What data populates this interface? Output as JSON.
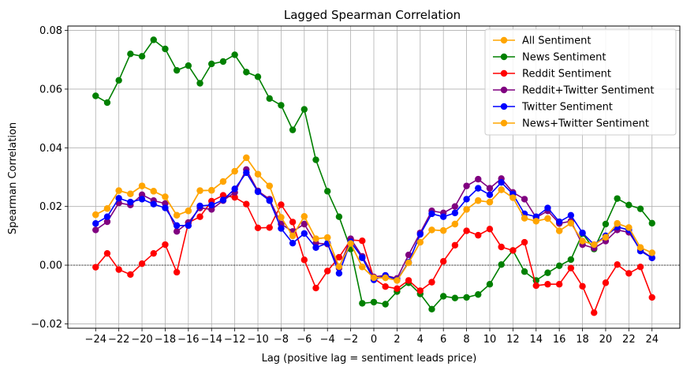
{
  "chart_data": {
    "type": "line",
    "title": "Lagged Spearman Correlation",
    "xlabel": "Lag (positive lag = sentiment leads price)",
    "ylabel": "Spearman Correlation",
    "xlim": [
      -26.4,
      26.4
    ],
    "ylim": [
      -0.0215,
      0.0815
    ],
    "xticks": [
      -24,
      -22,
      -20,
      -18,
      -16,
      -14,
      -12,
      -10,
      -8,
      -6,
      -4,
      -2,
      0,
      2,
      4,
      6,
      8,
      10,
      12,
      14,
      16,
      18,
      20,
      22,
      24
    ],
    "yticks": [
      -0.02,
      0.0,
      0.02,
      0.04,
      0.06,
      0.08
    ],
    "xtick_labels": [
      "−24",
      "−22",
      "−20",
      "−18",
      "−16",
      "−14",
      "−12",
      "−10",
      "−8",
      "−6",
      "−4",
      "−2",
      "0",
      "2",
      "4",
      "6",
      "8",
      "10",
      "12",
      "14",
      "16",
      "18",
      "20",
      "22",
      "24"
    ],
    "ytick_labels": [
      "−0.02",
      "0.00",
      "0.02",
      "0.04",
      "0.06",
      "0.08"
    ],
    "grid": true,
    "zero_line": true,
    "legend_position": "top-right",
    "x": [
      -24,
      -23,
      -22,
      -21,
      -20,
      -19,
      -18,
      -17,
      -16,
      -15,
      -14,
      -13,
      -12,
      -11,
      -10,
      -9,
      -8,
      -7,
      -6,
      -5,
      -4,
      -3,
      -2,
      -1,
      0,
      1,
      2,
      3,
      4,
      5,
      6,
      7,
      8,
      9,
      10,
      11,
      12,
      13,
      14,
      15,
      16,
      17,
      18,
      19,
      20,
      21,
      22,
      23,
      24
    ],
    "series": [
      {
        "name": "All Sentiment",
        "color": "#ffa500",
        "values": [
          0.0172,
          0.0193,
          0.0254,
          0.0243,
          0.027,
          0.0252,
          0.0233,
          0.017,
          0.0185,
          0.0254,
          0.0255,
          0.0285,
          0.032,
          0.0366,
          0.031,
          0.027,
          0.0163,
          0.01,
          0.0166,
          0.009,
          0.0094,
          -0.0005,
          0.0074,
          -0.0006,
          -0.0043,
          -0.0043,
          -0.0052,
          0.0008,
          0.0078,
          0.012,
          0.0118,
          0.014,
          0.019,
          0.022,
          0.0215,
          0.0257,
          0.023,
          0.016,
          0.015,
          0.0159,
          0.0117,
          0.0143,
          0.0082,
          0.007,
          0.0095,
          0.0142,
          0.0128,
          0.006,
          0.0042
        ]
      },
      {
        "name": "News Sentiment",
        "color": "#008000",
        "values": [
          0.0577,
          0.0554,
          0.063,
          0.072,
          0.0712,
          0.0768,
          0.0737,
          0.0664,
          0.068,
          0.062,
          0.0686,
          0.0694,
          0.0717,
          0.0658,
          0.0642,
          0.0568,
          0.0545,
          0.0461,
          0.0531,
          0.0359,
          0.0252,
          0.0165,
          0.0055,
          -0.013,
          -0.0126,
          -0.0133,
          -0.009,
          -0.006,
          -0.0098,
          -0.015,
          -0.0106,
          -0.0112,
          -0.011,
          -0.01,
          -0.0065,
          0.0002,
          0.005,
          -0.0022,
          -0.0052,
          -0.0026,
          -0.0002,
          0.0019,
          0.0108,
          0.0055,
          0.014,
          0.0227,
          0.0205,
          0.0192,
          0.0143
        ]
      },
      {
        "name": "Reddit Sentiment",
        "color": "#ff0000",
        "values": [
          -0.0007,
          0.004,
          -0.0015,
          -0.0032,
          0.0005,
          0.004,
          0.007,
          -0.0024,
          0.0145,
          0.0165,
          0.0218,
          0.0238,
          0.0231,
          0.0208,
          0.0127,
          0.0128,
          0.0206,
          0.0147,
          0.0018,
          -0.0078,
          -0.002,
          0.0027,
          0.0086,
          0.0083,
          -0.0045,
          -0.0073,
          -0.008,
          -0.0052,
          -0.0087,
          -0.0058,
          0.0013,
          0.0068,
          0.0117,
          0.0102,
          0.0123,
          0.0062,
          0.005,
          0.0078,
          -0.007,
          -0.0065,
          -0.0065,
          -0.001,
          -0.0072,
          -0.0162,
          -0.006,
          0.0002,
          -0.0028,
          -0.0006,
          -0.011
        ]
      },
      {
        "name": "Reddit+Twitter Sentiment",
        "color": "#800080",
        "values": [
          0.012,
          0.0148,
          0.0212,
          0.0205,
          0.024,
          0.022,
          0.021,
          0.0115,
          0.0145,
          0.0195,
          0.019,
          0.022,
          0.0248,
          0.0326,
          0.0253,
          0.0225,
          0.014,
          0.0115,
          0.014,
          0.0075,
          0.0072,
          -0.001,
          0.009,
          0.003,
          -0.004,
          -0.0035,
          -0.0045,
          0.0035,
          0.011,
          0.0185,
          0.0178,
          0.02,
          0.027,
          0.0293,
          0.0262,
          0.0295,
          0.0248,
          0.0225,
          0.0162,
          0.0185,
          0.0142,
          0.015,
          0.007,
          0.0058,
          0.0082,
          0.012,
          0.0112,
          0.0052,
          0.0025
        ]
      },
      {
        "name": "Twitter Sentiment",
        "color": "#0000ff",
        "values": [
          0.0142,
          0.0165,
          0.0228,
          0.0215,
          0.0225,
          0.0208,
          0.0195,
          0.0135,
          0.0135,
          0.0202,
          0.0205,
          0.0222,
          0.026,
          0.0315,
          0.025,
          0.022,
          0.0125,
          0.0075,
          0.0108,
          0.006,
          0.0075,
          -0.0028,
          0.008,
          0.0025,
          -0.005,
          -0.0035,
          -0.005,
          0.001,
          0.0105,
          0.0175,
          0.0165,
          0.0178,
          0.0225,
          0.0262,
          0.024,
          0.0282,
          0.0242,
          0.0175,
          0.0165,
          0.0195,
          0.0148,
          0.017,
          0.011,
          0.007,
          0.01,
          0.013,
          0.012,
          0.0048,
          0.0025
        ]
      },
      {
        "name": "News+Twitter Sentiment",
        "color": "#ffa500",
        "values": [
          0.0172,
          0.0193,
          0.0254,
          0.0243,
          0.027,
          0.0252,
          0.0233,
          0.017,
          0.0185,
          0.0254,
          0.0255,
          0.0285,
          0.032,
          0.0366,
          0.031,
          0.027,
          0.0163,
          0.01,
          0.0166,
          0.009,
          0.0094,
          -0.0005,
          0.0074,
          -0.0006,
          -0.0043,
          -0.0043,
          -0.0052,
          0.0008,
          0.0078,
          0.012,
          0.0118,
          0.014,
          0.019,
          0.022,
          0.0215,
          0.0257,
          0.023,
          0.016,
          0.015,
          0.0159,
          0.0117,
          0.0143,
          0.0082,
          0.007,
          0.0095,
          0.0142,
          0.0128,
          0.006,
          0.0042
        ]
      }
    ]
  }
}
